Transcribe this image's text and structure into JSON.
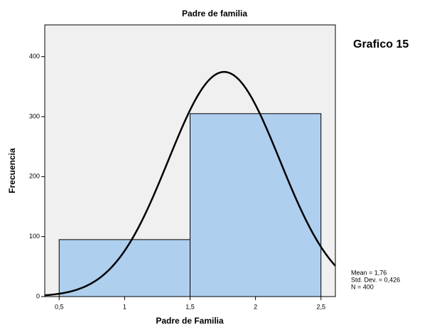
{
  "chart_data": {
    "type": "histogram",
    "title": "Padre de familia",
    "annotation": "Grafico 15",
    "x_label": "Padre de Familia",
    "y_label": "Frecuencia",
    "bins": [
      0.5,
      1.5,
      2.5
    ],
    "values": [
      95,
      305
    ],
    "color": "#aecfee",
    "xlim": [
      0.39,
      2.61
    ],
    "ylim": [
      0,
      453
    ],
    "xticks": [
      {
        "value": 0.5,
        "label": "0,5"
      },
      1,
      {
        "value": 1.5,
        "label": "1,5"
      },
      2,
      {
        "value": 2.5,
        "label": "2,5"
      }
    ],
    "yticks": [
      0,
      100,
      200,
      300,
      400
    ],
    "stats": {
      "mean": {
        "value": 1.76,
        "label": "Mean = 1,76"
      },
      "std": {
        "value": 0.426,
        "label": "Std. Dev. = 0,426"
      },
      "n": {
        "value": 400,
        "label": "N = 400"
      }
    }
  }
}
